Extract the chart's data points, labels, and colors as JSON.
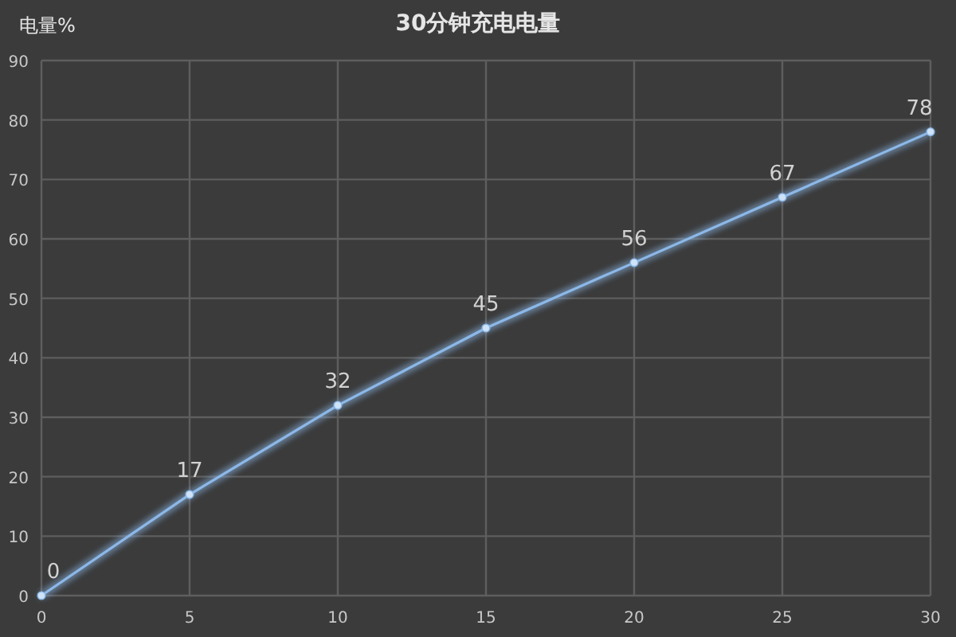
{
  "chart_data": {
    "type": "line",
    "title": "30分钟充电电量",
    "ylabel": "电量%",
    "x": [
      0,
      5,
      10,
      15,
      20,
      25,
      30
    ],
    "series": [
      {
        "color": "#8cb8e8",
        "values": [
          0,
          17,
          32,
          45,
          56,
          67,
          78
        ]
      }
    ],
    "xlim": [
      0,
      30
    ],
    "ylim": [
      0,
      90
    ],
    "xticks": [
      0,
      5,
      10,
      15,
      20,
      25,
      30
    ],
    "yticks": [
      0,
      10,
      20,
      30,
      40,
      50,
      60,
      70,
      80,
      90
    ],
    "grid": true,
    "marker": "circle",
    "line_style": "solid",
    "data_labels": true
  }
}
